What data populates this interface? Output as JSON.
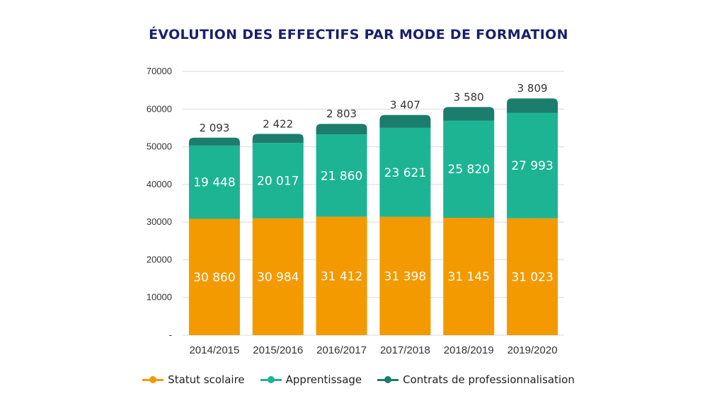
{
  "title": "ÉVOLUTION DES EFFECTIFS PAR MODE DE FORMATION",
  "colors": {
    "statut": "#f39a00",
    "apprentissage": "#1db494",
    "contrats": "#1b7d6b",
    "grid": "#d9d9d9"
  },
  "chart_data": {
    "type": "bar",
    "stacked": true,
    "title": "ÉVOLUTION DES EFFECTIFS PAR MODE DE FORMATION",
    "categories": [
      "2014/2015",
      "2015/2016",
      "2016/2017",
      "2017/2018",
      "2018/2019",
      "2019/2020"
    ],
    "series": [
      {
        "name": "Statut scolaire",
        "values": [
          30860,
          30984,
          31412,
          31398,
          31145,
          31023
        ],
        "labels": [
          "30 860",
          "30 984",
          "31 412",
          "31 398",
          "31 145",
          "31 023"
        ],
        "color": "#f39a00"
      },
      {
        "name": "Apprentissage",
        "values": [
          19448,
          20017,
          21860,
          23621,
          25820,
          27993
        ],
        "labels": [
          "19 448",
          "20 017",
          "21 860",
          "23 621",
          "25 820",
          "27 993"
        ],
        "color": "#1db494"
      },
      {
        "name": "Contrats de professionnalisation",
        "values": [
          2093,
          2422,
          2803,
          3407,
          3580,
          3809
        ],
        "labels": [
          "2 093",
          "2 422",
          "2 803",
          "3 407",
          "3 580",
          "3 809"
        ],
        "color": "#1b7d6b"
      }
    ],
    "yticks": [
      0,
      10000,
      20000,
      30000,
      40000,
      50000,
      60000,
      70000
    ],
    "ytick_labels": [
      "-",
      "10000",
      "20000",
      "30000",
      "40000",
      "50000",
      "60000",
      "70000"
    ],
    "ylim": [
      0,
      70000
    ],
    "grid": true,
    "legend": "bottom"
  }
}
